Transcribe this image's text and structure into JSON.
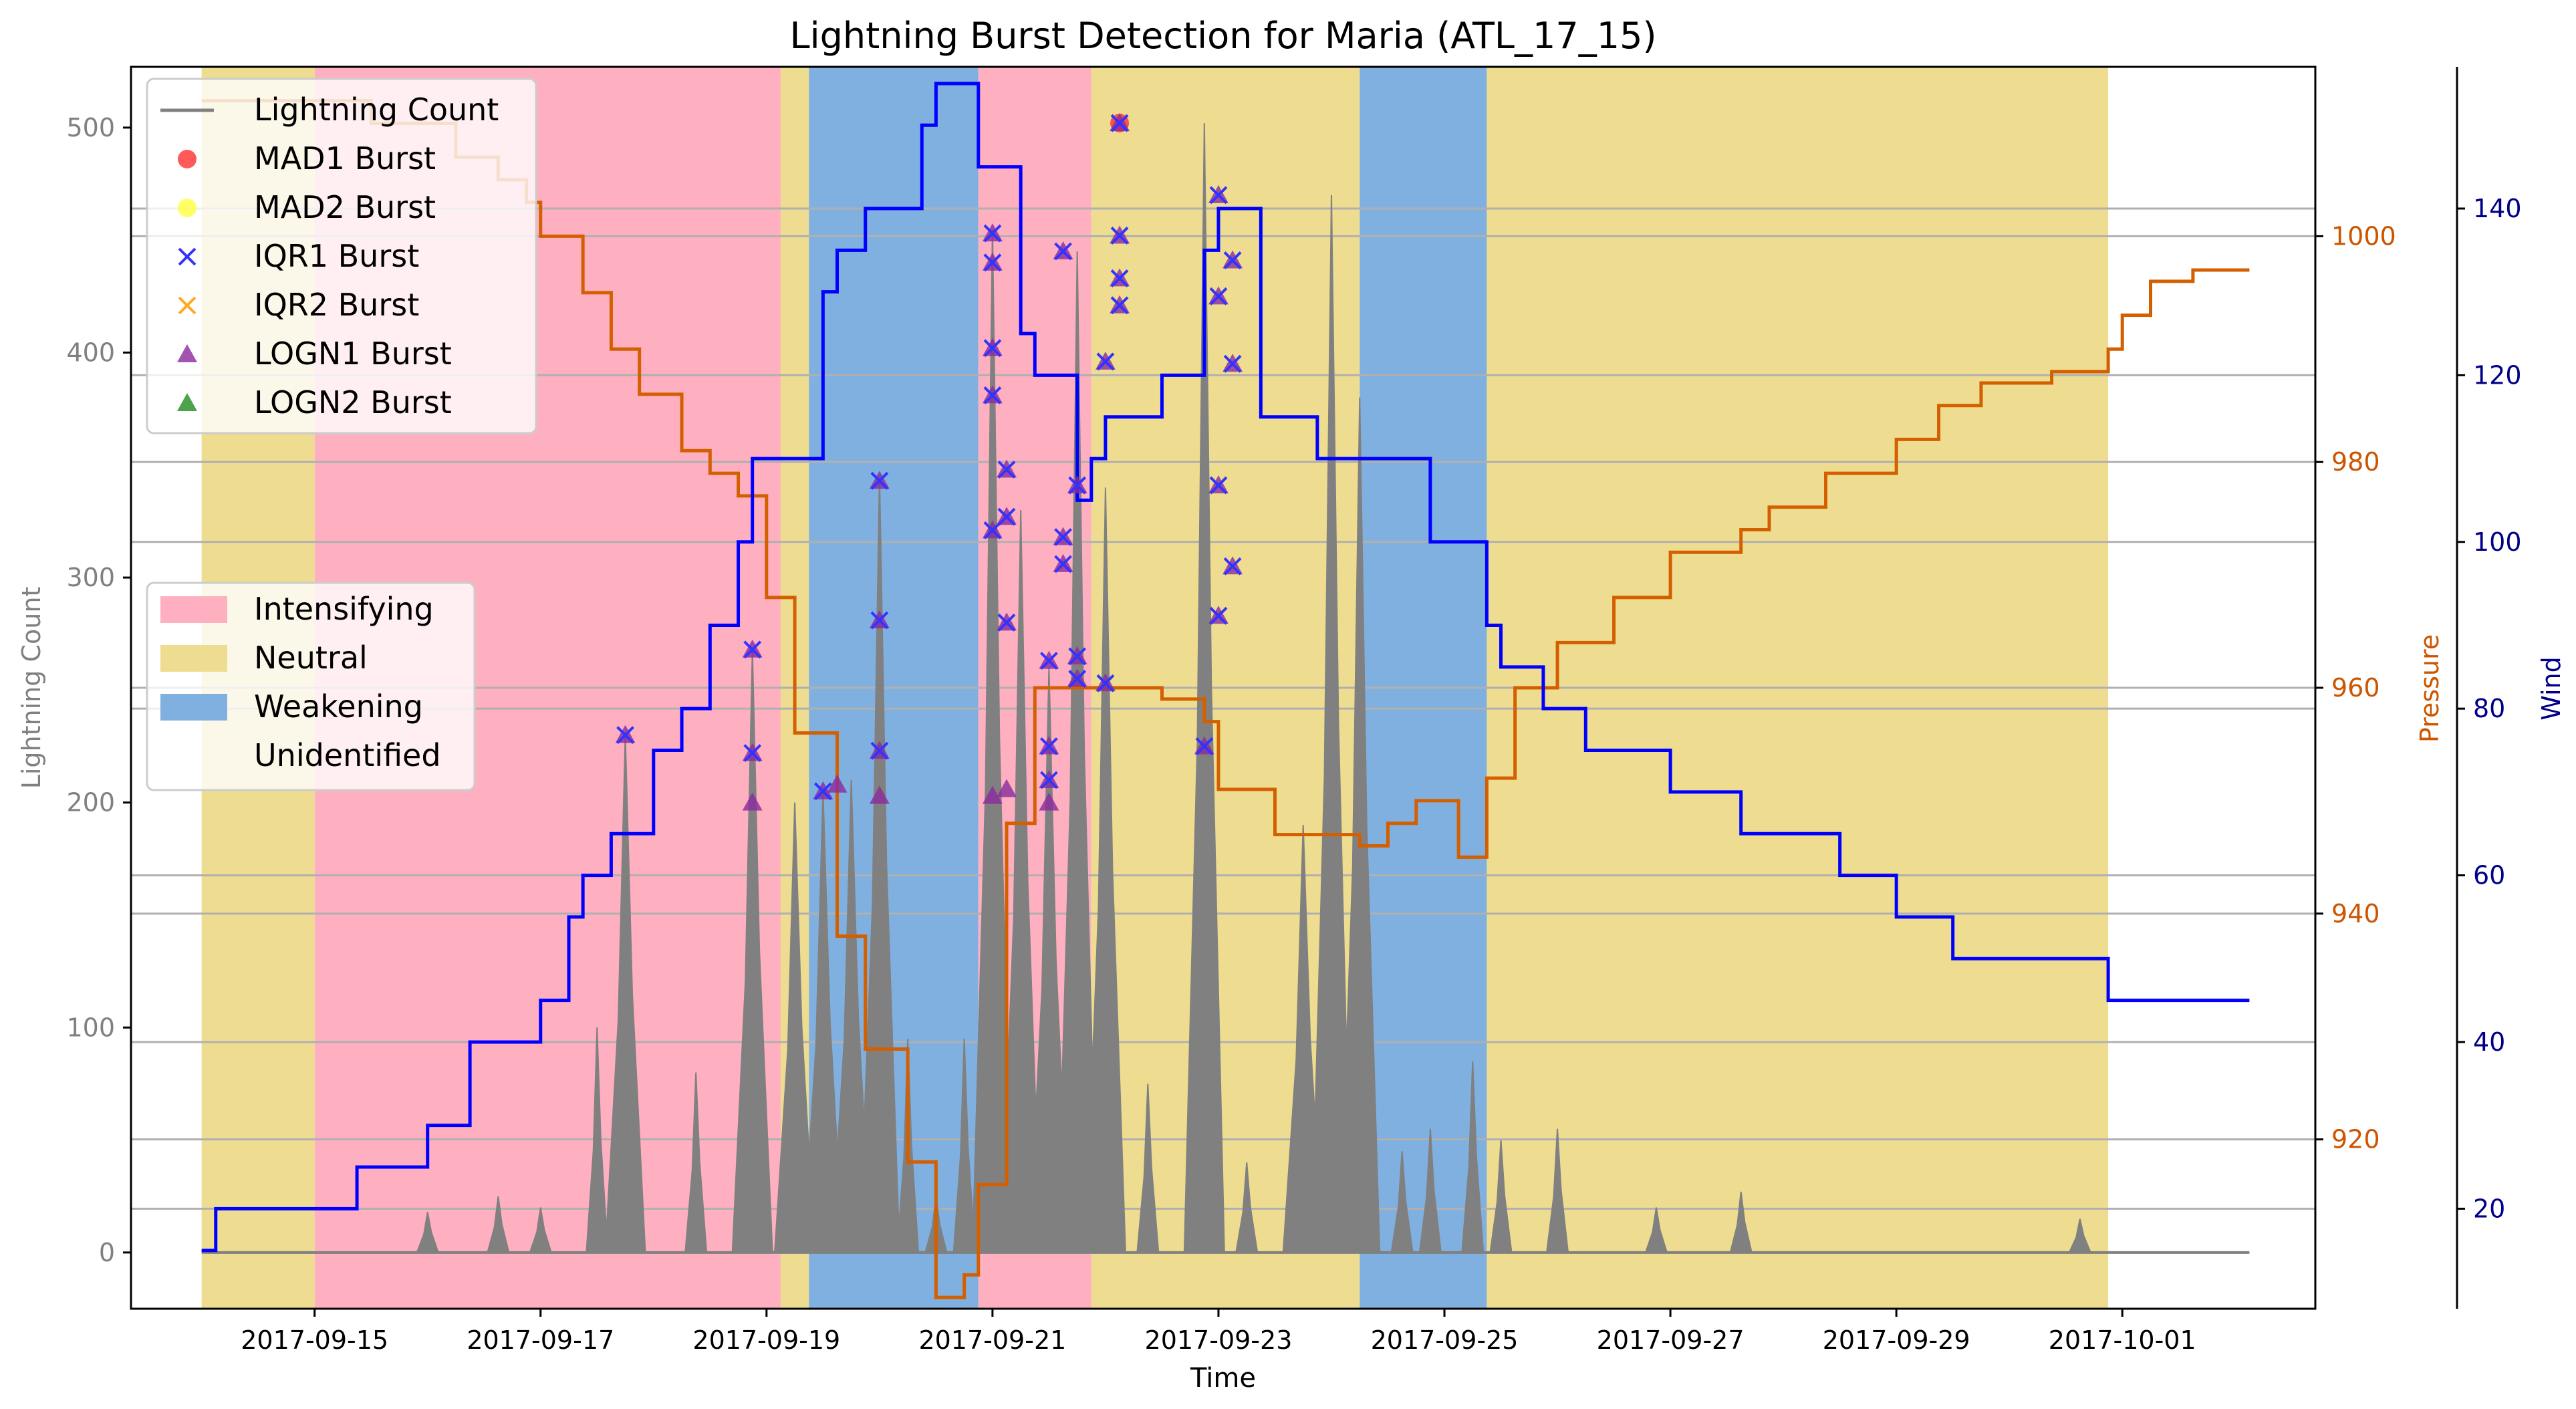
{
  "chart_data": {
    "type": "line",
    "title": "Lightning Burst Detection for Maria (ATL_17_15)",
    "xlabel": "Time",
    "x_tick_labels": [
      "2017-09-15",
      "2017-09-17",
      "2017-09-19",
      "2017-09-21",
      "2017-09-23",
      "2017-09-25",
      "2017-09-27",
      "2017-09-29",
      "2017-10-01"
    ],
    "x_tick_dates": [
      "2017-09-15",
      "2017-09-17",
      "2017-09-19",
      "2017-09-21",
      "2017-09-23",
      "2017-09-25",
      "2017-09-27",
      "2017-09-29",
      "2017-10-01"
    ],
    "xlim": [
      "2017-09-13T09:00",
      "2017-10-02T17:00"
    ],
    "grid": "horizontal lines",
    "axes": {
      "left": {
        "label": "Lightning Count",
        "ylim": [
          -25,
          527
        ],
        "ticks": [
          0,
          100,
          200,
          300,
          400,
          500
        ],
        "color": "#808080"
      },
      "right1": {
        "label": "Pressure",
        "ylim": [
          905,
          1015
        ],
        "ticks": [
          920,
          940,
          960,
          980,
          1000
        ],
        "color": "#cc5500"
      },
      "right2": {
        "label": "Wind",
        "ylim": [
          8,
          157
        ],
        "ticks": [
          20,
          40,
          60,
          80,
          100,
          120,
          140
        ],
        "color": "#00008b"
      }
    },
    "colors": {
      "lightning": "#808080",
      "pressure": "#d35f00",
      "wind": "#0000ff",
      "intensifying": "#ffb0c0",
      "neutral": "#eedd90",
      "weakening": "#80b0e0",
      "mad1": "#ff3030",
      "mad2": "#ffff40",
      "iqr1": "#3333ff",
      "iqr2": "#ffaa22",
      "logn1": "#8a2b9e",
      "logn2": "#228b22"
    },
    "legend1": {
      "position": "top-left",
      "entries": [
        {
          "label": "Lightning Count",
          "marker": "line",
          "color": "#808080"
        },
        {
          "label": "MAD1 Burst",
          "marker": "circle",
          "color": "#ff3030"
        },
        {
          "label": "MAD2 Burst",
          "marker": "circle",
          "color": "#ffff40"
        },
        {
          "label": "IQR1 Burst",
          "marker": "x",
          "color": "#3333ff"
        },
        {
          "label": "IQR2 Burst",
          "marker": "x",
          "color": "#ffaa22"
        },
        {
          "label": "LOGN1 Burst",
          "marker": "triangle",
          "color": "#8a2b9e"
        },
        {
          "label": "LOGN2 Burst",
          "marker": "triangle",
          "color": "#228b22"
        }
      ]
    },
    "legend2": {
      "position": "center-left",
      "entries": [
        {
          "label": "Intensifying",
          "color": "#ffb0c0"
        },
        {
          "label": "Neutral",
          "color": "#eedd90"
        },
        {
          "label": "Weakening",
          "color": "#80b0e0"
        },
        {
          "label": "Unidentified",
          "color": "none"
        }
      ]
    },
    "phases": [
      {
        "start": "2017-09-14T00:00",
        "end": "2017-09-15T00:00",
        "phase": "Neutral"
      },
      {
        "start": "2017-09-15T00:00",
        "end": "2017-09-19T03:00",
        "phase": "Intensifying"
      },
      {
        "start": "2017-09-19T03:00",
        "end": "2017-09-19T09:00",
        "phase": "Neutral"
      },
      {
        "start": "2017-09-19T09:00",
        "end": "2017-09-20T21:00",
        "phase": "Weakening"
      },
      {
        "start": "2017-09-20T21:00",
        "end": "2017-09-21T21:00",
        "phase": "Intensifying"
      },
      {
        "start": "2017-09-21T21:00",
        "end": "2017-09-24T06:00",
        "phase": "Neutral"
      },
      {
        "start": "2017-09-24T06:00",
        "end": "2017-09-25T09:00",
        "phase": "Weakening"
      },
      {
        "start": "2017-09-25T09:00",
        "end": "2017-09-30T21:00",
        "phase": "Neutral"
      }
    ],
    "wind_steps": [
      [
        "2017-09-14T00:00",
        15
      ],
      [
        "2017-09-14T03:00",
        20
      ],
      [
        "2017-09-15T09:00",
        25
      ],
      [
        "2017-09-16T00:00",
        30
      ],
      [
        "2017-09-16T09:00",
        40
      ],
      [
        "2017-09-17T00:00",
        45
      ],
      [
        "2017-09-17T06:00",
        55
      ],
      [
        "2017-09-17T09:00",
        60
      ],
      [
        "2017-09-17T15:00",
        65
      ],
      [
        "2017-09-18T00:00",
        75
      ],
      [
        "2017-09-18T06:00",
        80
      ],
      [
        "2017-09-18T12:00",
        90
      ],
      [
        "2017-09-18T18:00",
        100
      ],
      [
        "2017-09-18T21:00",
        110
      ],
      [
        "2017-09-19T12:00",
        130
      ],
      [
        "2017-09-19T15:00",
        135
      ],
      [
        "2017-09-19T21:00",
        140
      ],
      [
        "2017-09-20T09:00",
        150
      ],
      [
        "2017-09-20T12:00",
        155
      ],
      [
        "2017-09-20T21:00",
        145
      ],
      [
        "2017-09-21T06:00",
        125
      ],
      [
        "2017-09-21T09:00",
        120
      ],
      [
        "2017-09-21T18:00",
        105
      ],
      [
        "2017-09-21T21:00",
        110
      ],
      [
        "2017-09-22T00:00",
        115
      ],
      [
        "2017-09-22T12:00",
        120
      ],
      [
        "2017-09-22T21:00",
        135
      ],
      [
        "2017-09-23T00:00",
        140
      ],
      [
        "2017-09-23T09:00",
        115
      ],
      [
        "2017-09-23T21:00",
        110
      ],
      [
        "2017-09-24T21:00",
        100
      ],
      [
        "2017-09-25T09:00",
        90
      ],
      [
        "2017-09-25T12:00",
        85
      ],
      [
        "2017-09-25T21:00",
        80
      ],
      [
        "2017-09-26T06:00",
        75
      ],
      [
        "2017-09-27T00:00",
        70
      ],
      [
        "2017-09-27T15:00",
        65
      ],
      [
        "2017-09-28T12:00",
        60
      ],
      [
        "2017-09-29T00:00",
        55
      ],
      [
        "2017-09-29T12:00",
        50
      ],
      [
        "2017-09-30T21:00",
        45
      ],
      [
        "2017-10-02T03:00",
        45
      ]
    ],
    "pressure_steps": [
      [
        "2017-09-14T00:00",
        1012
      ],
      [
        "2017-09-15T12:00",
        1010
      ],
      [
        "2017-09-16T06:00",
        1007
      ],
      [
        "2017-09-16T15:00",
        1005
      ],
      [
        "2017-09-16T21:00",
        1003
      ],
      [
        "2017-09-17T00:00",
        1000
      ],
      [
        "2017-09-17T09:00",
        995
      ],
      [
        "2017-09-17T15:00",
        990
      ],
      [
        "2017-09-17T21:00",
        986
      ],
      [
        "2017-09-18T06:00",
        981
      ],
      [
        "2017-09-18T12:00",
        979
      ],
      [
        "2017-09-18T18:00",
        977
      ],
      [
        "2017-09-19T00:00",
        968
      ],
      [
        "2017-09-19T06:00",
        956
      ],
      [
        "2017-09-19T15:00",
        938
      ],
      [
        "2017-09-19T21:00",
        928
      ],
      [
        "2017-09-20T06:00",
        918
      ],
      [
        "2017-09-20T12:00",
        906
      ],
      [
        "2017-09-20T18:00",
        908
      ],
      [
        "2017-09-20T21:00",
        916
      ],
      [
        "2017-09-21T03:00",
        948
      ],
      [
        "2017-09-21T09:00",
        960
      ],
      [
        "2017-09-22T12:00",
        959
      ],
      [
        "2017-09-22T21:00",
        957
      ],
      [
        "2017-09-23T00:00",
        951
      ],
      [
        "2017-09-23T12:00",
        947
      ],
      [
        "2017-09-24T06:00",
        946
      ],
      [
        "2017-09-24T12:00",
        948
      ],
      [
        "2017-09-24T18:00",
        950
      ],
      [
        "2017-09-25T03:00",
        945
      ],
      [
        "2017-09-25T09:00",
        952
      ],
      [
        "2017-09-25T15:00",
        960
      ],
      [
        "2017-09-26T00:00",
        964
      ],
      [
        "2017-09-26T12:00",
        968
      ],
      [
        "2017-09-27T00:00",
        972
      ],
      [
        "2017-09-27T15:00",
        974
      ],
      [
        "2017-09-27T21:00",
        976
      ],
      [
        "2017-09-28T09:00",
        979
      ],
      [
        "2017-09-29T00:00",
        982
      ],
      [
        "2017-09-29T09:00",
        985
      ],
      [
        "2017-09-29T18:00",
        987
      ],
      [
        "2017-09-30T09:00",
        988
      ],
      [
        "2017-09-30T21:00",
        990
      ],
      [
        "2017-10-01T00:00",
        993
      ],
      [
        "2017-10-01T06:00",
        996
      ],
      [
        "2017-10-01T15:00",
        997
      ],
      [
        "2017-10-02T03:00",
        997
      ]
    ],
    "lightning_peaks": [
      {
        "t": "2017-09-16T00:00",
        "count": 18
      },
      {
        "t": "2017-09-16T15:00",
        "count": 25
      },
      {
        "t": "2017-09-17T00:00",
        "count": 20
      },
      {
        "t": "2017-09-17T12:00",
        "count": 100
      },
      {
        "t": "2017-09-17T18:00",
        "count": 230
      },
      {
        "t": "2017-09-18T09:00",
        "count": 80
      },
      {
        "t": "2017-09-18T21:00",
        "count": 268
      },
      {
        "t": "2017-09-19T06:00",
        "count": 200
      },
      {
        "t": "2017-09-19T12:00",
        "count": 205
      },
      {
        "t": "2017-09-19T18:00",
        "count": 210
      },
      {
        "t": "2017-09-20T00:00",
        "count": 345
      },
      {
        "t": "2017-09-20T06:00",
        "count": 95
      },
      {
        "t": "2017-09-20T12:00",
        "count": 25
      },
      {
        "t": "2017-09-20T18:00",
        "count": 95
      },
      {
        "t": "2017-09-21T00:00",
        "count": 455
      },
      {
        "t": "2017-09-21T06:00",
        "count": 330
      },
      {
        "t": "2017-09-21T12:00",
        "count": 260
      },
      {
        "t": "2017-09-21T18:00",
        "count": 445
      },
      {
        "t": "2017-09-22T00:00",
        "count": 340
      },
      {
        "t": "2017-09-22T09:00",
        "count": 75
      },
      {
        "t": "2017-09-22T21:00",
        "count": 502
      },
      {
        "t": "2017-09-23T06:00",
        "count": 40
      },
      {
        "t": "2017-09-23T18:00",
        "count": 190
      },
      {
        "t": "2017-09-24T00:00",
        "count": 470
      },
      {
        "t": "2017-09-24T06:00",
        "count": 380
      },
      {
        "t": "2017-09-24T15:00",
        "count": 45
      },
      {
        "t": "2017-09-24T21:00",
        "count": 55
      },
      {
        "t": "2017-09-25T06:00",
        "count": 85
      },
      {
        "t": "2017-09-25T12:00",
        "count": 50
      },
      {
        "t": "2017-09-26T00:00",
        "count": 55
      },
      {
        "t": "2017-09-26T21:00",
        "count": 20
      },
      {
        "t": "2017-09-27T15:00",
        "count": 27
      },
      {
        "t": "2017-09-30T15:00",
        "count": 15
      }
    ],
    "bursts": [
      {
        "t": "2017-09-17T18:00",
        "count": 230,
        "methods": [
          "IQR1",
          "LOGN1"
        ]
      },
      {
        "t": "2017-09-18T21:00",
        "count": 268,
        "methods": [
          "IQR1",
          "LOGN1"
        ]
      },
      {
        "t": "2017-09-18T21:00",
        "count": 222,
        "methods": [
          "IQR1",
          "LOGN1"
        ]
      },
      {
        "t": "2017-09-18T21:00",
        "count": 200,
        "methods": [
          "LOGN1"
        ]
      },
      {
        "t": "2017-09-19T12:00",
        "count": 205,
        "methods": [
          "IQR1",
          "LOGN1"
        ]
      },
      {
        "t": "2017-09-19T15:00",
        "count": 208,
        "methods": [
          "LOGN1"
        ]
      },
      {
        "t": "2017-09-20T00:00",
        "count": 343,
        "methods": [
          "IQR1",
          "LOGN1"
        ]
      },
      {
        "t": "2017-09-20T00:00",
        "count": 281,
        "methods": [
          "IQR1",
          "LOGN1"
        ]
      },
      {
        "t": "2017-09-20T00:00",
        "count": 223,
        "methods": [
          "IQR1",
          "LOGN1"
        ]
      },
      {
        "t": "2017-09-20T00:00",
        "count": 203,
        "methods": [
          "LOGN1"
        ]
      },
      {
        "t": "2017-09-21T00:00",
        "count": 453,
        "methods": [
          "IQR1",
          "LOGN1"
        ]
      },
      {
        "t": "2017-09-21T00:00",
        "count": 440,
        "methods": [
          "IQR1",
          "LOGN1"
        ]
      },
      {
        "t": "2017-09-21T00:00",
        "count": 402,
        "methods": [
          "IQR1",
          "LOGN1"
        ]
      },
      {
        "t": "2017-09-21T00:00",
        "count": 381,
        "methods": [
          "IQR1",
          "LOGN1"
        ]
      },
      {
        "t": "2017-09-21T00:00",
        "count": 321,
        "methods": [
          "IQR1",
          "LOGN1"
        ]
      },
      {
        "t": "2017-09-21T00:00",
        "count": 203,
        "methods": [
          "LOGN1"
        ]
      },
      {
        "t": "2017-09-21T03:00",
        "count": 348,
        "methods": [
          "IQR1",
          "LOGN1"
        ]
      },
      {
        "t": "2017-09-21T03:00",
        "count": 327,
        "methods": [
          "IQR1",
          "LOGN1"
        ]
      },
      {
        "t": "2017-09-21T03:00",
        "count": 280,
        "methods": [
          "IQR1",
          "LOGN1"
        ]
      },
      {
        "t": "2017-09-21T03:00",
        "count": 206,
        "methods": [
          "LOGN1"
        ]
      },
      {
        "t": "2017-09-21T15:00",
        "count": 445,
        "methods": [
          "IQR1",
          "LOGN1"
        ]
      },
      {
        "t": "2017-09-21T15:00",
        "count": 318,
        "methods": [
          "IQR1",
          "LOGN1"
        ]
      },
      {
        "t": "2017-09-21T15:00",
        "count": 306,
        "methods": [
          "IQR1",
          "LOGN1"
        ]
      },
      {
        "t": "2017-09-21T12:00",
        "count": 263,
        "methods": [
          "IQR1",
          "LOGN1"
        ]
      },
      {
        "t": "2017-09-21T12:00",
        "count": 225,
        "methods": [
          "IQR1",
          "LOGN1"
        ]
      },
      {
        "t": "2017-09-21T12:00",
        "count": 210,
        "methods": [
          "IQR1",
          "LOGN1"
        ]
      },
      {
        "t": "2017-09-21T12:00",
        "count": 200,
        "methods": [
          "LOGN1"
        ]
      },
      {
        "t": "2017-09-21T18:00",
        "count": 341,
        "methods": [
          "IQR1",
          "LOGN1"
        ]
      },
      {
        "t": "2017-09-21T18:00",
        "count": 265,
        "methods": [
          "IQR1",
          "LOGN1"
        ]
      },
      {
        "t": "2017-09-21T18:00",
        "count": 255,
        "methods": [
          "IQR1",
          "LOGN1"
        ]
      },
      {
        "t": "2017-09-22T00:00",
        "count": 396,
        "methods": [
          "IQR1",
          "LOGN1"
        ]
      },
      {
        "t": "2017-09-22T00:00",
        "count": 253,
        "methods": [
          "IQR1",
          "LOGN1"
        ]
      },
      {
        "t": "2017-09-22T03:00",
        "count": 502,
        "methods": [
          "MAD1",
          "IQR1",
          "LOGN1"
        ]
      },
      {
        "t": "2017-09-22T03:00",
        "count": 452,
        "methods": [
          "IQR1",
          "LOGN1"
        ]
      },
      {
        "t": "2017-09-22T03:00",
        "count": 433,
        "methods": [
          "IQR1",
          "LOGN1"
        ]
      },
      {
        "t": "2017-09-22T03:00",
        "count": 421,
        "methods": [
          "IQR1",
          "LOGN1"
        ]
      },
      {
        "t": "2017-09-22T21:00",
        "count": 225,
        "methods": [
          "IQR1",
          "LOGN1"
        ]
      },
      {
        "t": "2017-09-23T00:00",
        "count": 470,
        "methods": [
          "IQR1",
          "LOGN1"
        ]
      },
      {
        "t": "2017-09-23T00:00",
        "count": 425,
        "methods": [
          "IQR1",
          "LOGN1"
        ]
      },
      {
        "t": "2017-09-23T00:00",
        "count": 341,
        "methods": [
          "IQR1",
          "LOGN1"
        ]
      },
      {
        "t": "2017-09-23T00:00",
        "count": 283,
        "methods": [
          "IQR1",
          "LOGN1"
        ]
      },
      {
        "t": "2017-09-23T03:00",
        "count": 441,
        "methods": [
          "IQR1",
          "LOGN1"
        ]
      },
      {
        "t": "2017-09-23T03:00",
        "count": 395,
        "methods": [
          "IQR1",
          "LOGN1"
        ]
      },
      {
        "t": "2017-09-23T03:00",
        "count": 305,
        "methods": [
          "IQR1",
          "LOGN1"
        ]
      }
    ]
  }
}
